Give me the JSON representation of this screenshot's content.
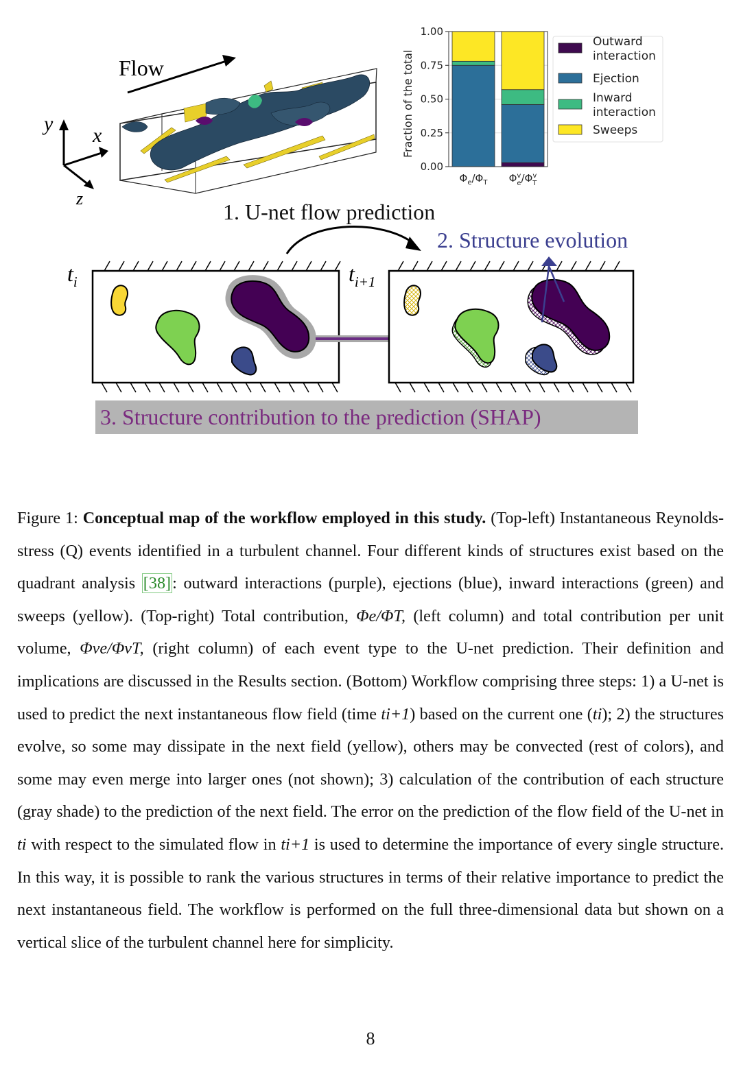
{
  "figure": {
    "axes3d": {
      "y": "y",
      "x": "x",
      "z": "z"
    },
    "flow_label": "Flow",
    "step1": "1. U-net flow prediction",
    "step2": "2. Structure evolution",
    "step3": "3. Structure contribution to the prediction (SHAP)",
    "time_i": "t",
    "time_i_sub": "i",
    "time_next": "t",
    "time_next_sub": "i+1",
    "colors": {
      "outward": "#3f0a4f",
      "ejection": "#2c6f99",
      "inward": "#3dbb82",
      "sweeps": "#fde725",
      "yellow_blob": "#f8d735",
      "green_blob": "#7ed151",
      "purple_blob": "#440154",
      "blue_blob": "#3b4b8a",
      "arrow_purple": "#6a2c83",
      "evolution_text": "#3b3f8f",
      "shap_text": "#7a2a7f",
      "shap_bg": "#b4b4b4"
    }
  },
  "chart_data": {
    "type": "bar",
    "stacked": true,
    "categories": [
      "Φe/ΦT",
      "Φve/ΦvT"
    ],
    "tick_labels": {
      "left": {
        "main": "Φ",
        "sub1": "e",
        "mid": "/Φ",
        "sub2": "T"
      },
      "right": {
        "main": "Φ",
        "sup1": "v",
        "sub1": "e",
        "mid": "/Φ",
        "sup2": "v",
        "sub2": "T"
      }
    },
    "ylabel": "Fraction of the total",
    "ylim": [
      0,
      1
    ],
    "yticks": [
      "0.00",
      "0.25",
      "0.50",
      "0.75",
      "1.00"
    ],
    "series": [
      {
        "name": "Outward interaction",
        "color": "#3f0a4f",
        "values": [
          0.0,
          0.03
        ]
      },
      {
        "name": "Ejection",
        "color": "#2c6f99",
        "values": [
          0.75,
          0.43
        ]
      },
      {
        "name": "Inward interaction",
        "color": "#3dbb82",
        "values": [
          0.03,
          0.11
        ]
      },
      {
        "name": "Sweeps",
        "color": "#fde725",
        "values": [
          0.22,
          0.43
        ]
      }
    ],
    "legend": [
      {
        "label_line1": "Outward",
        "label_line2": "interaction"
      },
      {
        "label_line1": "Ejection",
        "label_line2": ""
      },
      {
        "label_line1": "Inward",
        "label_line2": "interaction"
      },
      {
        "label_line1": "Sweeps",
        "label_line2": ""
      }
    ],
    "legend_position": "right"
  },
  "caption": {
    "figure_label": "Figure 1:",
    "bold_title": "Conceptual map of the workflow employed in this study.",
    "s1": "(Top-left) Instantaneous Reynolds-stress (Q) events identified in a turbulent channel. Four different kinds of structures exist based on the quadrant analysis",
    "ref": "[38]",
    "s2": ": outward interactions (purple), ejections (blue), inward interactions (green) and sweeps (yellow). (Top-right) Total contribution,",
    "s3": "(left column) and total contribution per unit volume,",
    "s4": "(right column) of each event type to the U-net prediction. Their definition and implications are discussed in the Results section. (Bottom) Workflow comprising three steps: 1) a U-net is used to predict the next instantaneous flow field (time",
    "s5": ") based on the current one (",
    "s6": "); 2) the structures evolve, so some may dissipate in the next field (yellow), others may be convected (rest of colors), and some may even merge into larger ones (not shown); 3) calculation of the contribution of each structure (gray shade) to the prediction of the next field. The error on the prediction of the flow field of the U-net in",
    "s7": "with respect to the simulated flow in",
    "s8": "is used to determine the importance of every single structure. In this way, it is possible to rank the various structures in terms of their relative importance to predict the next instantaneous field. The workflow is performed on the full three-dimensional data but shown on a vertical slice of the turbulent channel here for simplicity.",
    "m_phi_e_T": "Φe/ΦT,",
    "m_phi_v": "Φve/ΦvT,",
    "m_t_next": "ti+1",
    "m_t_i": "ti",
    "m_t_i2": "ti",
    "m_t_next2": "ti+1"
  },
  "page_number": "8"
}
